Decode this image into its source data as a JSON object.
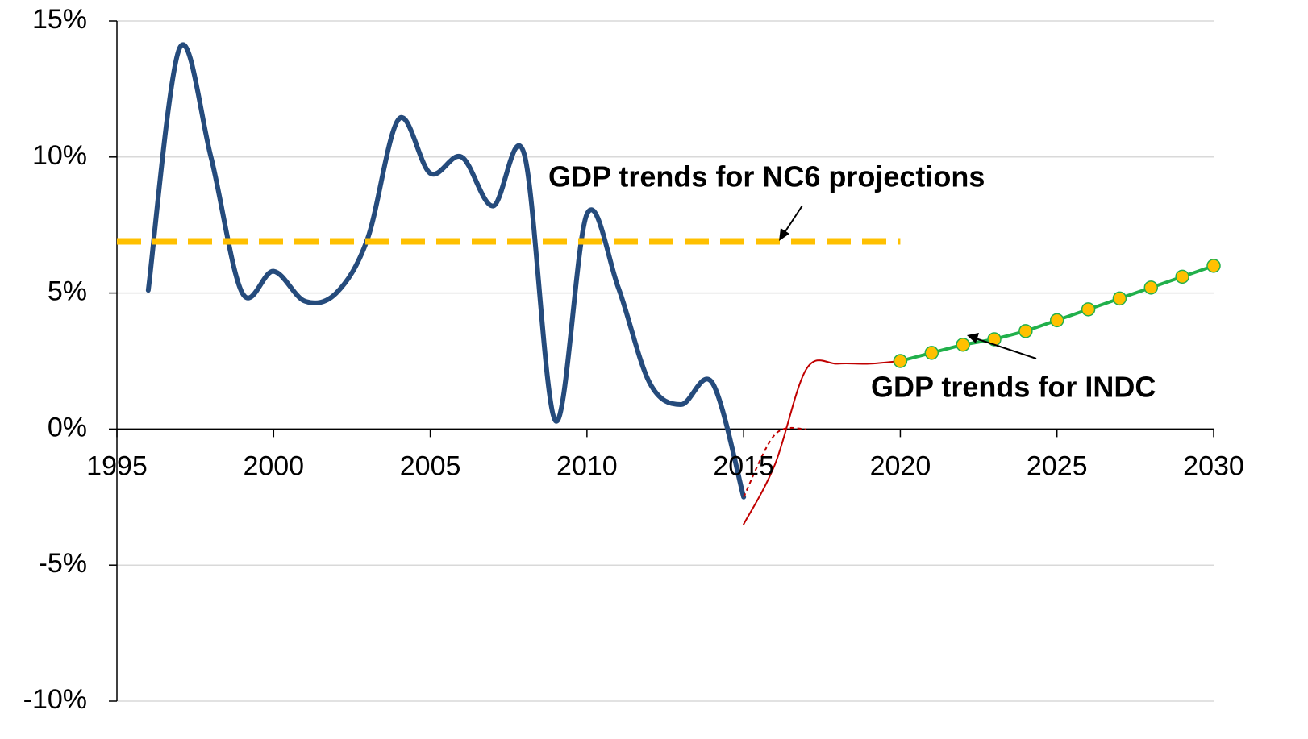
{
  "chart_data": {
    "type": "line",
    "xlim": [
      1995,
      2030
    ],
    "xticks": [
      1995,
      2000,
      2005,
      2010,
      2015,
      2020,
      2025,
      2030
    ],
    "ylim": [
      -10,
      15
    ],
    "yticks": [
      {
        "value": -10,
        "label": "-10%"
      },
      {
        "value": -5,
        "label": "-5%"
      },
      {
        "value": 0,
        "label": "0%"
      },
      {
        "value": 5,
        "label": "5%"
      },
      {
        "value": 10,
        "label": "10%"
      },
      {
        "value": 15,
        "label": "15%"
      }
    ],
    "grid": true,
    "annotations": [
      "GDP trends for NC6 projections",
      "GDP trends for INDC"
    ],
    "series": [
      {
        "color": "#254b7c",
        "width": 6,
        "smooth": true,
        "x": [
          1996,
          1997,
          1998,
          1999,
          2000,
          2001,
          2002,
          2003,
          2004,
          2005,
          2006,
          2007,
          2008,
          2009,
          2010,
          2011,
          2012,
          2013,
          2014,
          2015
        ],
        "values": [
          5.1,
          14.0,
          10.0,
          5.0,
          5.8,
          4.7,
          5.0,
          7.0,
          11.4,
          9.4,
          10.0,
          8.2,
          10.1,
          0.3,
          7.9,
          5.2,
          1.7,
          0.9,
          1.7,
          -2.5
        ]
      },
      {
        "color": "#ffc000",
        "width": 8,
        "dash": "dashed",
        "x": [
          1995,
          2020
        ],
        "values": [
          6.9,
          6.9
        ]
      },
      {
        "color": "#c00000",
        "width": 2,
        "smooth": true,
        "x": [
          2015,
          2016,
          2017,
          2018,
          2019,
          2020
        ],
        "values": [
          -3.5,
          -1.3,
          2.2,
          2.4,
          2.4,
          2.5
        ]
      },
      {
        "color": "#c00000",
        "width": 2,
        "dash": "dotted",
        "smooth": true,
        "x": [
          2015,
          2016,
          2017
        ],
        "values": [
          -2.5,
          -0.2,
          0.0
        ]
      },
      {
        "color": "#21b04b",
        "width": 4,
        "marker": "#ffc000",
        "x": [
          2020,
          2021,
          2022,
          2023,
          2024,
          2025,
          2026,
          2027,
          2028,
          2029,
          2030
        ],
        "values": [
          2.5,
          2.8,
          3.1,
          3.3,
          3.6,
          4.0,
          4.4,
          4.8,
          5.2,
          5.6,
          6.0
        ]
      }
    ]
  }
}
